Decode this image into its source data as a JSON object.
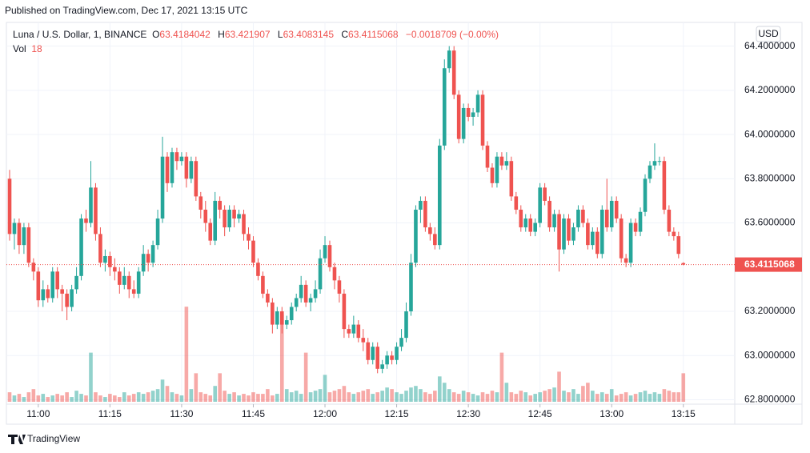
{
  "header": {
    "published": "Published on TradingView.com, Dec 17, 2021 13:15 UTC",
    "symbol": "Luna / U.S. Dollar, 1, BINANCE",
    "open_label": "O",
    "high_label": "H",
    "low_label": "L",
    "close_label": "C",
    "change": "−0.0018709 (−0.00%)",
    "volume_label": "Vol",
    "currency": "USD",
    "footer": "TradingView"
  },
  "chart_data": {
    "type": "candlestick",
    "up_color": "#26a69a",
    "down_color": "#ef5350",
    "grid": true,
    "ylim": [
      62.78,
      64.5
    ],
    "yticks": [
      {
        "value": 62.8,
        "label": "62.8000000"
      },
      {
        "value": 63.0,
        "label": "63.0000000"
      },
      {
        "value": 63.2,
        "label": "63.2000000"
      },
      {
        "value": 63.6,
        "label": "63.6000000"
      },
      {
        "value": 63.8,
        "label": "63.8000000"
      },
      {
        "value": 64.0,
        "label": "64.0000000"
      },
      {
        "value": 64.2,
        "label": "64.2000000"
      },
      {
        "value": 64.4,
        "label": "64.4000000"
      }
    ],
    "xticks": [
      {
        "value": 6,
        "label": "11:00"
      },
      {
        "value": 21,
        "label": "11:15"
      },
      {
        "value": 36,
        "label": "11:30"
      },
      {
        "value": 51,
        "label": "11:45"
      },
      {
        "value": 66,
        "label": "12:00"
      },
      {
        "value": 81,
        "label": "12:15"
      },
      {
        "value": 96,
        "label": "12:30"
      },
      {
        "value": 111,
        "label": "12:45"
      },
      {
        "value": 126,
        "label": "13:00"
      },
      {
        "value": 141,
        "label": "13:15"
      }
    ],
    "volume_ylim": [
      0,
      100
    ],
    "candles": [
      [
        63.8,
        63.84,
        63.52,
        63.55
      ],
      [
        63.55,
        63.62,
        63.48,
        63.6
      ],
      [
        63.6,
        63.62,
        63.46,
        63.5
      ],
      [
        63.5,
        63.6,
        63.46,
        63.58
      ],
      [
        63.58,
        63.6,
        63.4,
        63.42
      ],
      [
        63.42,
        63.44,
        63.34,
        63.38
      ],
      [
        63.38,
        63.4,
        63.22,
        63.25
      ],
      [
        63.25,
        63.34,
        63.22,
        63.3
      ],
      [
        63.3,
        63.32,
        63.24,
        63.26
      ],
      [
        63.26,
        63.4,
        63.24,
        63.38
      ],
      [
        63.38,
        63.4,
        63.26,
        63.3
      ],
      [
        63.3,
        63.32,
        63.2,
        63.28
      ],
      [
        63.28,
        63.3,
        63.16,
        63.22
      ],
      [
        63.22,
        63.32,
        63.2,
        63.3
      ],
      [
        63.3,
        63.4,
        63.28,
        63.36
      ],
      [
        63.36,
        63.64,
        63.34,
        63.62
      ],
      [
        63.62,
        63.66,
        63.56,
        63.6
      ],
      [
        63.6,
        63.88,
        63.58,
        63.76
      ],
      [
        63.76,
        63.78,
        63.52,
        63.55
      ],
      [
        63.55,
        63.58,
        63.4,
        63.42
      ],
      [
        63.42,
        63.48,
        63.38,
        63.45
      ],
      [
        63.45,
        63.47,
        63.36,
        63.4
      ],
      [
        63.4,
        63.44,
        63.34,
        63.38
      ],
      [
        63.38,
        63.4,
        63.28,
        63.32
      ],
      [
        63.32,
        63.4,
        63.3,
        63.36
      ],
      [
        63.36,
        63.38,
        63.26,
        63.3
      ],
      [
        63.3,
        63.34,
        63.26,
        63.28
      ],
      [
        63.28,
        63.4,
        63.26,
        63.38
      ],
      [
        63.38,
        63.5,
        63.36,
        63.46
      ],
      [
        63.46,
        63.48,
        63.38,
        63.42
      ],
      [
        63.42,
        63.52,
        63.4,
        63.5
      ],
      [
        63.5,
        63.66,
        63.48,
        63.62
      ],
      [
        63.62,
        63.99,
        63.6,
        63.9
      ],
      [
        63.9,
        63.92,
        63.74,
        63.78
      ],
      [
        63.78,
        63.94,
        63.76,
        63.92
      ],
      [
        63.92,
        63.94,
        63.84,
        63.88
      ],
      [
        63.88,
        63.92,
        63.86,
        63.9
      ],
      [
        63.9,
        63.92,
        63.76,
        63.8
      ],
      [
        63.8,
        63.9,
        63.78,
        63.88
      ],
      [
        63.88,
        63.9,
        63.7,
        63.72
      ],
      [
        63.72,
        63.74,
        63.62,
        63.66
      ],
      [
        63.66,
        63.7,
        63.56,
        63.6
      ],
      [
        63.6,
        63.62,
        63.5,
        63.52
      ],
      [
        63.52,
        63.74,
        63.5,
        63.7
      ],
      [
        63.7,
        63.72,
        63.62,
        63.66
      ],
      [
        63.66,
        63.68,
        63.54,
        63.58
      ],
      [
        63.58,
        63.68,
        63.56,
        63.66
      ],
      [
        63.66,
        63.68,
        63.58,
        63.62
      ],
      [
        63.62,
        63.66,
        63.6,
        63.64
      ],
      [
        63.64,
        63.66,
        63.52,
        63.55
      ],
      [
        63.55,
        63.58,
        63.48,
        63.52
      ],
      [
        63.52,
        63.54,
        63.4,
        63.42
      ],
      [
        63.42,
        63.44,
        63.34,
        63.36
      ],
      [
        63.36,
        63.38,
        63.26,
        63.28
      ],
      [
        63.28,
        63.3,
        63.22,
        63.24
      ],
      [
        63.24,
        63.26,
        63.1,
        63.14
      ],
      [
        63.14,
        63.22,
        63.12,
        63.2
      ],
      [
        63.2,
        63.22,
        63.1,
        63.14
      ],
      [
        63.14,
        63.18,
        63.12,
        63.16
      ],
      [
        63.16,
        63.24,
        63.14,
        63.22
      ],
      [
        63.22,
        63.28,
        63.2,
        63.26
      ],
      [
        63.26,
        63.36,
        63.24,
        63.32
      ],
      [
        63.32,
        63.34,
        63.22,
        63.24
      ],
      [
        63.24,
        63.28,
        63.2,
        63.26
      ],
      [
        63.26,
        63.34,
        63.24,
        63.3
      ],
      [
        63.3,
        63.48,
        63.28,
        63.44
      ],
      [
        63.44,
        63.54,
        63.42,
        63.5
      ],
      [
        63.5,
        63.52,
        63.38,
        63.4
      ],
      [
        63.4,
        63.42,
        63.3,
        63.34
      ],
      [
        63.34,
        63.36,
        63.24,
        63.28
      ],
      [
        63.28,
        63.3,
        63.08,
        63.12
      ],
      [
        63.12,
        63.14,
        63.08,
        63.1
      ],
      [
        63.1,
        63.18,
        63.08,
        63.14
      ],
      [
        63.14,
        63.16,
        63.06,
        63.08
      ],
      [
        63.08,
        63.12,
        63.02,
        63.06
      ],
      [
        63.06,
        63.08,
        62.96,
        62.98
      ],
      [
        62.98,
        63.06,
        62.96,
        63.04
      ],
      [
        63.04,
        63.06,
        62.92,
        62.94
      ],
      [
        62.94,
        62.98,
        62.92,
        62.96
      ],
      [
        62.96,
        63.02,
        62.94,
        63.0
      ],
      [
        63.0,
        63.02,
        62.96,
        62.98
      ],
      [
        62.98,
        63.06,
        62.96,
        63.04
      ],
      [
        63.04,
        63.12,
        63.02,
        63.08
      ],
      [
        63.08,
        63.24,
        63.06,
        63.2
      ],
      [
        63.2,
        63.46,
        63.18,
        63.42
      ],
      [
        63.42,
        63.68,
        63.4,
        63.66
      ],
      [
        63.66,
        63.72,
        63.6,
        63.7
      ],
      [
        63.7,
        63.72,
        63.56,
        63.58
      ],
      [
        63.58,
        63.6,
        63.52,
        63.55
      ],
      [
        63.55,
        63.58,
        63.48,
        63.5
      ],
      [
        63.5,
        63.98,
        63.48,
        63.95
      ],
      [
        63.95,
        64.34,
        63.93,
        64.3
      ],
      [
        64.3,
        64.4,
        64.28,
        64.38
      ],
      [
        64.38,
        64.4,
        64.16,
        64.18
      ],
      [
        64.18,
        64.2,
        63.96,
        63.98
      ],
      [
        63.98,
        64.14,
        63.96,
        64.12
      ],
      [
        64.12,
        64.14,
        64.06,
        64.08
      ],
      [
        64.08,
        64.12,
        64.04,
        64.1
      ],
      [
        64.1,
        64.2,
        64.08,
        64.18
      ],
      [
        64.18,
        64.2,
        63.93,
        63.95
      ],
      [
        63.95,
        63.97,
        63.83,
        63.85
      ],
      [
        63.85,
        63.87,
        63.76,
        63.78
      ],
      [
        63.78,
        63.92,
        63.76,
        63.9
      ],
      [
        63.9,
        63.92,
        63.84,
        63.86
      ],
      [
        63.86,
        63.92,
        63.84,
        63.88
      ],
      [
        63.88,
        63.9,
        63.7,
        63.72
      ],
      [
        63.72,
        63.74,
        63.64,
        63.66
      ],
      [
        63.66,
        63.68,
        63.56,
        63.58
      ],
      [
        63.58,
        63.64,
        63.56,
        63.62
      ],
      [
        63.62,
        63.64,
        63.54,
        63.56
      ],
      [
        63.56,
        63.62,
        63.54,
        63.6
      ],
      [
        63.6,
        63.78,
        63.58,
        63.76
      ],
      [
        63.76,
        63.78,
        63.68,
        63.7
      ],
      [
        63.7,
        63.72,
        63.56,
        63.58
      ],
      [
        63.58,
        63.66,
        63.56,
        63.64
      ],
      [
        63.64,
        63.66,
        63.38,
        63.48
      ],
      [
        63.48,
        63.64,
        63.46,
        63.62
      ],
      [
        63.62,
        63.64,
        63.5,
        63.52
      ],
      [
        63.52,
        63.6,
        63.5,
        63.58
      ],
      [
        63.58,
        63.68,
        63.56,
        63.66
      ],
      [
        63.66,
        63.68,
        63.58,
        63.6
      ],
      [
        63.6,
        63.62,
        63.48,
        63.5
      ],
      [
        63.5,
        63.58,
        63.48,
        63.56
      ],
      [
        63.56,
        63.58,
        63.44,
        63.46
      ],
      [
        63.46,
        63.68,
        63.44,
        63.66
      ],
      [
        63.66,
        63.8,
        63.56,
        63.58
      ],
      [
        63.58,
        63.72,
        63.56,
        63.7
      ],
      [
        63.7,
        63.72,
        63.6,
        63.62
      ],
      [
        63.62,
        63.64,
        63.42,
        63.44
      ],
      [
        63.44,
        63.46,
        63.4,
        63.42
      ],
      [
        63.42,
        63.62,
        63.4,
        63.6
      ],
      [
        63.6,
        63.62,
        63.54,
        63.56
      ],
      [
        63.56,
        63.67,
        63.54,
        63.65
      ],
      [
        63.65,
        63.82,
        63.63,
        63.8
      ],
      [
        63.8,
        63.88,
        63.78,
        63.86
      ],
      [
        63.86,
        63.96,
        63.84,
        63.88
      ],
      [
        63.88,
        63.9,
        63.86,
        63.88
      ],
      [
        63.88,
        63.9,
        63.64,
        63.66
      ],
      [
        63.66,
        63.68,
        63.54,
        63.56
      ],
      [
        63.56,
        63.58,
        63.52,
        63.54
      ],
      [
        63.54,
        63.56,
        63.44,
        63.46
      ],
      [
        63.4184042,
        63.421907,
        63.4083145,
        63.4115068
      ]
    ],
    "volumes": [
      6,
      4,
      5,
      3,
      6,
      8,
      4,
      5,
      3,
      4,
      5,
      4,
      6,
      3,
      7,
      5,
      4,
      31,
      6,
      4,
      3,
      5,
      4,
      3,
      6,
      4,
      5,
      6,
      5,
      6,
      7,
      8,
      14,
      10,
      6,
      5,
      4,
      60,
      8,
      18,
      6,
      5,
      4,
      10,
      18,
      7,
      5,
      6,
      4,
      5,
      4,
      6,
      5,
      5,
      8,
      4,
      5,
      55,
      8,
      6,
      7,
      5,
      31,
      6,
      7,
      8,
      17,
      6,
      7,
      8,
      10,
      6,
      5,
      6,
      7,
      8,
      5,
      6,
      7,
      9,
      8,
      6,
      5,
      7,
      9,
      10,
      8,
      6,
      5,
      7,
      16,
      12,
      8,
      6,
      5,
      7,
      6,
      5,
      4,
      6,
      5,
      7,
      6,
      31,
      12,
      6,
      5,
      7,
      6,
      4,
      5,
      6,
      7,
      8,
      9,
      19,
      7,
      6,
      8,
      5,
      10,
      12,
      7,
      5,
      6,
      5,
      8,
      4,
      5,
      6,
      4,
      5,
      6,
      7,
      5,
      6,
      5,
      8,
      7,
      6,
      6,
      18
    ]
  }
}
